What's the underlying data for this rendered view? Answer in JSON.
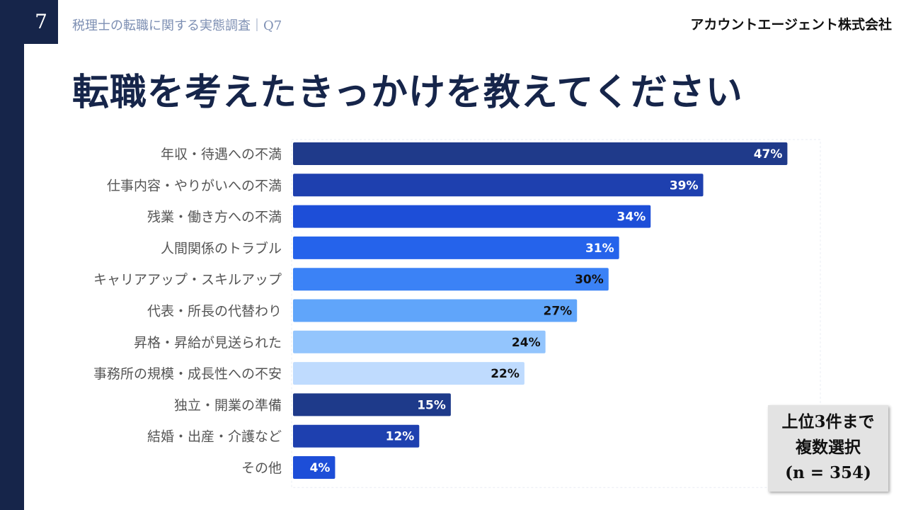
{
  "header": {
    "page_number": "7",
    "subtitle": "税理士の転職に関する実態調査｜Q7",
    "company": "アカウントエージェント株式会社"
  },
  "title": "転職を考えたきっかけを教えてください",
  "note": {
    "line1": "上位3件まで",
    "line2": "複数選択",
    "line3": "(n = 354)"
  },
  "chart_data": {
    "type": "bar",
    "orientation": "horizontal",
    "categories": [
      "年収・待遇への不満",
      "仕事内容・やりがいへの不満",
      "残業・働き方への不満",
      "人間関係のトラブル",
      "キャリアアップ・スキルアップ",
      "代表・所長の代替わり",
      "昇格・昇給が見送られた",
      "事務所の規模・成長性への不安",
      "独立・開業の準備",
      "結婚・出産・介護など",
      "その他"
    ],
    "values": [
      47,
      39,
      34,
      31,
      30,
      27,
      24,
      22,
      15,
      12,
      4
    ],
    "data_labels": [
      "47%",
      "39%",
      "34%",
      "31%",
      "30%",
      "27%",
      "24%",
      "22%",
      "15%",
      "12%",
      "4%"
    ],
    "bar_colors": [
      "#1f3a8a",
      "#1e40af",
      "#1d4ed8",
      "#2563eb",
      "#3b82f6",
      "#60a5fa",
      "#93c5fd",
      "#bfdbfe",
      "#1e3a8a",
      "#1e40af",
      "#1d4ed8"
    ],
    "label_colors": [
      "#ffffff",
      "#ffffff",
      "#ffffff",
      "#ffffff",
      "#111111",
      "#111111",
      "#111111",
      "#111111",
      "#ffffff",
      "#ffffff",
      "#ffffff"
    ],
    "xlim": [
      0,
      50
    ],
    "title": "",
    "xlabel": "",
    "ylabel": ""
  }
}
